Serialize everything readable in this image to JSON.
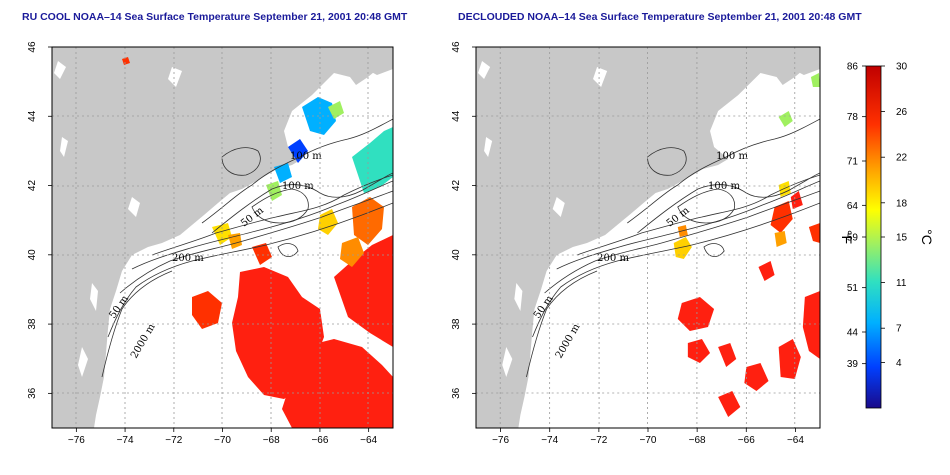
{
  "panels": [
    {
      "title": "RU COOL NOAA–14 Sea Surface Temperature September 21, 2001 20:48 GMT"
    },
    {
      "title": "DECLOUDED NOAA–14 Sea Surface Temperature September 21, 2001 20:48 GMT"
    }
  ],
  "axes": {
    "lon_ticks": [
      "−76",
      "−74",
      "−72",
      "−70",
      "−68",
      "−66",
      "−64"
    ],
    "lat_ticks": [
      "36",
      "38",
      "40",
      "42",
      "44",
      "46"
    ],
    "lon_range": [
      -77,
      -63
    ],
    "lat_range": [
      35,
      46
    ]
  },
  "contour_labels": [
    "100 m",
    "100 m",
    "50 m",
    "200 m",
    "50 m",
    "2000 m"
  ],
  "colorbar": {
    "f_ticks": [
      "86",
      "78",
      "71",
      "64",
      "59",
      "51",
      "44",
      "39"
    ],
    "c_ticks": [
      "30",
      "26",
      "22",
      "18",
      "15",
      "11",
      "7",
      "4"
    ],
    "f_unit": "°F",
    "c_unit": "°C",
    "colors": [
      "#1a0a8a",
      "#0040ff",
      "#00b0ff",
      "#30e0c0",
      "#a0f060",
      "#ffff00",
      "#ffa000",
      "#ff3000",
      "#c00000"
    ]
  },
  "colors": {
    "land": "#c8c8c8",
    "water": "#ffffff",
    "warm": "#ff2010",
    "grid": "#9a9a9a"
  }
}
